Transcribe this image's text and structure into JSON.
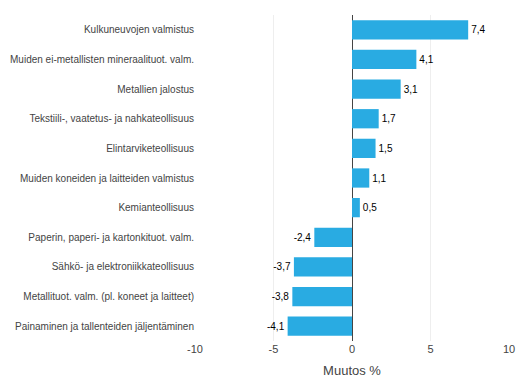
{
  "chart_data": {
    "type": "bar",
    "orientation": "horizontal",
    "xlabel": "Muutos %",
    "categories": [
      "Painaminen ja tallenteiden jäljentäminen",
      "Metallituot. valm. (pl. koneet ja laitteet)",
      "Sähkö- ja elektroniikkateollisuus",
      "Paperin, paperi- ja kartonkituot. valm.",
      "Kemianteollisuus",
      "Muiden koneiden ja laitteiden valmistus",
      "Elintarviketeollisuus",
      "Tekstiili-, vaatetus- ja nahkateollisuus",
      "Metallien jalostus",
      "Muiden ei-metallisten mineraalituot. valm.",
      "Kulkuneuvojen valmistus"
    ],
    "values": [
      -4.1,
      -3.8,
      -3.7,
      -2.4,
      0.5,
      1.1,
      1.5,
      1.7,
      3.1,
      4.1,
      7.4
    ],
    "value_labels": [
      "-4,1",
      "-3,8",
      "-3,7",
      "-2,4",
      "0,5",
      "1,1",
      "1,5",
      "1,7",
      "3,1",
      "4,1",
      "7,4"
    ],
    "color": "#29abe2",
    "xlim": [
      -10,
      10
    ],
    "xticks": [
      -10,
      -5,
      0,
      5,
      10
    ],
    "grid": true,
    "data_labels": true
  }
}
